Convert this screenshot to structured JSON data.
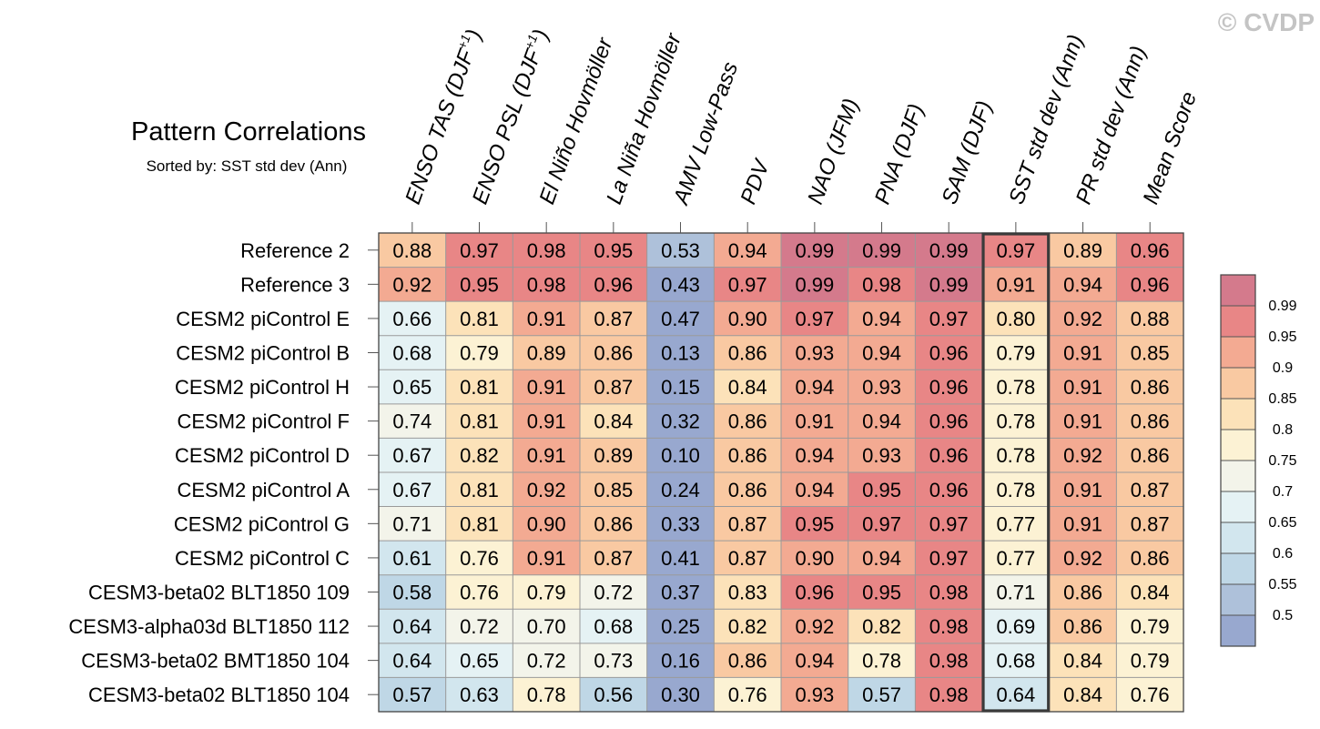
{
  "watermark": "© CVDP",
  "chart_data": {
    "type": "heatmap",
    "title": "Pattern Correlations",
    "subtitle": "Sorted by: SST std dev (Ann)",
    "columns": [
      {
        "label": "ENSO TAS (DJF",
        "sup": "+1",
        "suffix": ")"
      },
      {
        "label": "ENSO PSL (DJF",
        "sup": "+1",
        "suffix": ")"
      },
      {
        "label": "El Niño Hovmöller",
        "sup": "",
        "suffix": ""
      },
      {
        "label": "La Niña Hovmöller",
        "sup": "",
        "suffix": ""
      },
      {
        "label": "AMV Low-Pass",
        "sup": "",
        "suffix": ""
      },
      {
        "label": "PDV",
        "sup": "",
        "suffix": ""
      },
      {
        "label": "NAO (JFM)",
        "sup": "",
        "suffix": ""
      },
      {
        "label": "PNA (DJF)",
        "sup": "",
        "suffix": ""
      },
      {
        "label": "SAM (DJF)",
        "sup": "",
        "suffix": ""
      },
      {
        "label": "SST std dev (Ann)",
        "sup": "",
        "suffix": ""
      },
      {
        "label": "PR std dev (Ann)",
        "sup": "",
        "suffix": ""
      },
      {
        "label": "Mean Score",
        "sup": "",
        "suffix": ""
      }
    ],
    "rows": [
      "Reference 2",
      "Reference 3",
      "CESM2 piControl E",
      "CESM2 piControl B",
      "CESM2 piControl H",
      "CESM2 piControl F",
      "CESM2 piControl D",
      "CESM2 piControl A",
      "CESM2 piControl G",
      "CESM2 piControl C",
      "CESM3-beta02 BLT1850 109",
      "CESM3-alpha03d BLT1850 112",
      "CESM3-beta02 BMT1850 104",
      "CESM3-beta02 BLT1850 104"
    ],
    "values": [
      [
        "0.88",
        "0.97",
        "0.98",
        "0.95",
        "0.53",
        "0.94",
        "0.99",
        "0.99",
        "0.99",
        "0.97",
        "0.89",
        "0.96"
      ],
      [
        "0.92",
        "0.95",
        "0.98",
        "0.96",
        "0.43",
        "0.97",
        "0.99",
        "0.98",
        "0.99",
        "0.91",
        "0.94",
        "0.96"
      ],
      [
        "0.66",
        "0.81",
        "0.91",
        "0.87",
        "0.47",
        "0.90",
        "0.97",
        "0.94",
        "0.97",
        "0.80",
        "0.92",
        "0.88"
      ],
      [
        "0.68",
        "0.79",
        "0.89",
        "0.86",
        "0.13",
        "0.86",
        "0.93",
        "0.94",
        "0.96",
        "0.79",
        "0.91",
        "0.85"
      ],
      [
        "0.65",
        "0.81",
        "0.91",
        "0.87",
        "0.15",
        "0.84",
        "0.94",
        "0.93",
        "0.96",
        "0.78",
        "0.91",
        "0.86"
      ],
      [
        "0.74",
        "0.81",
        "0.91",
        "0.84",
        "0.32",
        "0.86",
        "0.91",
        "0.94",
        "0.96",
        "0.78",
        "0.91",
        "0.86"
      ],
      [
        "0.67",
        "0.82",
        "0.91",
        "0.89",
        "0.10",
        "0.86",
        "0.94",
        "0.93",
        "0.96",
        "0.78",
        "0.92",
        "0.86"
      ],
      [
        "0.67",
        "0.81",
        "0.92",
        "0.85",
        "0.24",
        "0.86",
        "0.94",
        "0.95",
        "0.96",
        "0.78",
        "0.91",
        "0.87"
      ],
      [
        "0.71",
        "0.81",
        "0.90",
        "0.86",
        "0.33",
        "0.87",
        "0.95",
        "0.97",
        "0.97",
        "0.77",
        "0.91",
        "0.87"
      ],
      [
        "0.61",
        "0.76",
        "0.91",
        "0.87",
        "0.41",
        "0.87",
        "0.90",
        "0.94",
        "0.97",
        "0.77",
        "0.92",
        "0.86"
      ],
      [
        "0.58",
        "0.76",
        "0.79",
        "0.72",
        "0.37",
        "0.83",
        "0.96",
        "0.95",
        "0.98",
        "0.71",
        "0.86",
        "0.84"
      ],
      [
        "0.64",
        "0.72",
        "0.70",
        "0.68",
        "0.25",
        "0.82",
        "0.92",
        "0.82",
        "0.98",
        "0.69",
        "0.86",
        "0.79"
      ],
      [
        "0.64",
        "0.65",
        "0.72",
        "0.73",
        "0.16",
        "0.86",
        "0.94",
        "0.78",
        "0.98",
        "0.68",
        "0.84",
        "0.79"
      ],
      [
        "0.57",
        "0.63",
        "0.78",
        "0.56",
        "0.30",
        "0.76",
        "0.93",
        "0.57",
        "0.98",
        "0.64",
        "0.84",
        "0.76"
      ]
    ],
    "highlighted_column": "SST std dev (Ann)",
    "colorbar": {
      "ticks": [
        "0.99",
        "0.95",
        "0.9",
        "0.85",
        "0.8",
        "0.75",
        "0.7",
        "0.65",
        "0.6",
        "0.55",
        "0.5"
      ],
      "thresholds": [
        0.5,
        0.55,
        0.6,
        0.65,
        0.7,
        0.75,
        0.8,
        0.85,
        0.9,
        0.95,
        0.99
      ],
      "colors": [
        "#98a8cf",
        "#aec1da",
        "#bfd7e6",
        "#d2e6ee",
        "#e5f2f4",
        "#f3f4ea",
        "#fcf2d4",
        "#fce2b9",
        "#f9c9a2",
        "#f3aa92",
        "#e88686",
        "#d47a8c"
      ]
    }
  }
}
